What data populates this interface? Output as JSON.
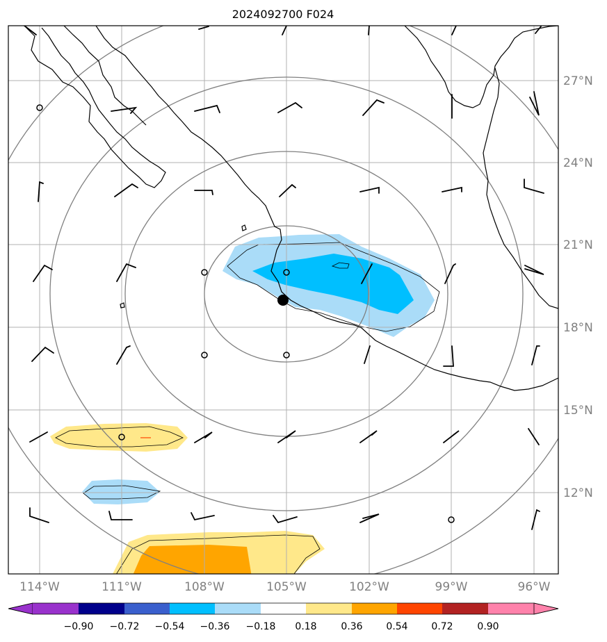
{
  "title": "2024092700 F024",
  "map": {
    "lat_range": [
      8.0,
      29.0
    ],
    "lon_range": [
      -115.0,
      -95.0
    ],
    "lat_ticks": [
      {
        "value": 12,
        "label": "12°N"
      },
      {
        "value": 15,
        "label": "15°N"
      },
      {
        "value": 18,
        "label": "18°N"
      },
      {
        "value": 21,
        "label": "21°N"
      },
      {
        "value": 24,
        "label": "24°N"
      },
      {
        "value": 27,
        "label": "27°N"
      }
    ],
    "lon_ticks": [
      {
        "value": -114,
        "label": "114°W"
      },
      {
        "value": -111,
        "label": "111°W"
      },
      {
        "value": -108,
        "label": "108°W"
      },
      {
        "value": -105,
        "label": "105°W"
      },
      {
        "value": -102,
        "label": "102°W"
      },
      {
        "value": -99,
        "label": "99°W"
      },
      {
        "value": -96,
        "label": "96°W"
      }
    ],
    "grid": true,
    "storm_center": {
      "lat": 19.0,
      "lon": -105.1
    },
    "range_rings_deg": [
      3,
      5,
      8,
      11
    ],
    "colors": {
      "grid": "#b0b0b0",
      "rings": "#808080",
      "coast": "#000000",
      "light_blue": "#aadcf8",
      "blue": "#00bfff",
      "light_yellow": "#ffe88a",
      "orange": "#ffa500"
    }
  },
  "colorbar": {
    "levels": [
      "−0.90",
      "−0.72",
      "−0.54",
      "−0.36",
      "−0.18",
      "0.18",
      "0.36",
      "0.54",
      "0.72",
      "0.90"
    ],
    "colors": [
      "#9932cc",
      "#00008b",
      "#3a5fcd",
      "#00bfff",
      "#aadcf8",
      "#ffffff",
      "#ffe88a",
      "#ffa500",
      "#ff4500",
      "#b22222",
      "#ff82ab"
    ]
  }
}
